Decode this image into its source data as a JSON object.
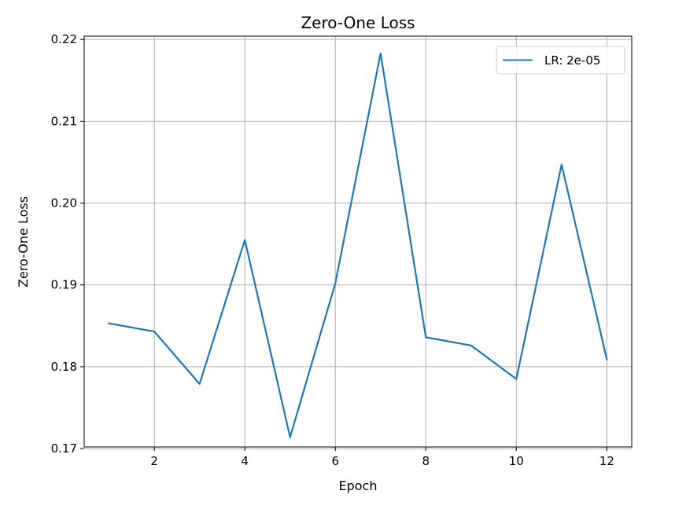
{
  "chart_data": {
    "type": "line",
    "title": "Zero-One Loss",
    "xlabel": "Epoch",
    "ylabel": "Zero-One Loss",
    "x": [
      1,
      2,
      3,
      4,
      5,
      6,
      7,
      8,
      9,
      10,
      11,
      12
    ],
    "series": [
      {
        "name": "LR: 2e-05",
        "color": "#1f77b4",
        "values": [
          0.1853,
          0.1843,
          0.1779,
          0.1955,
          0.1714,
          0.1902,
          0.2183,
          0.1836,
          0.1826,
          0.1785,
          0.2047,
          0.1809
        ]
      }
    ],
    "xticks": [
      2,
      4,
      6,
      8,
      10,
      12
    ],
    "xtick_labels": [
      "2",
      "4",
      "6",
      "8",
      "10",
      "12"
    ],
    "yticks": [
      0.17,
      0.18,
      0.19,
      0.2,
      0.21,
      0.22
    ],
    "ytick_labels": [
      "0.17",
      "0.18",
      "0.19",
      "0.20",
      "0.21",
      "0.22"
    ],
    "xlim": [
      0.45,
      12.55
    ],
    "ylim": [
      0.1702,
      0.2204
    ],
    "grid": true,
    "legend_position": "upper right"
  }
}
